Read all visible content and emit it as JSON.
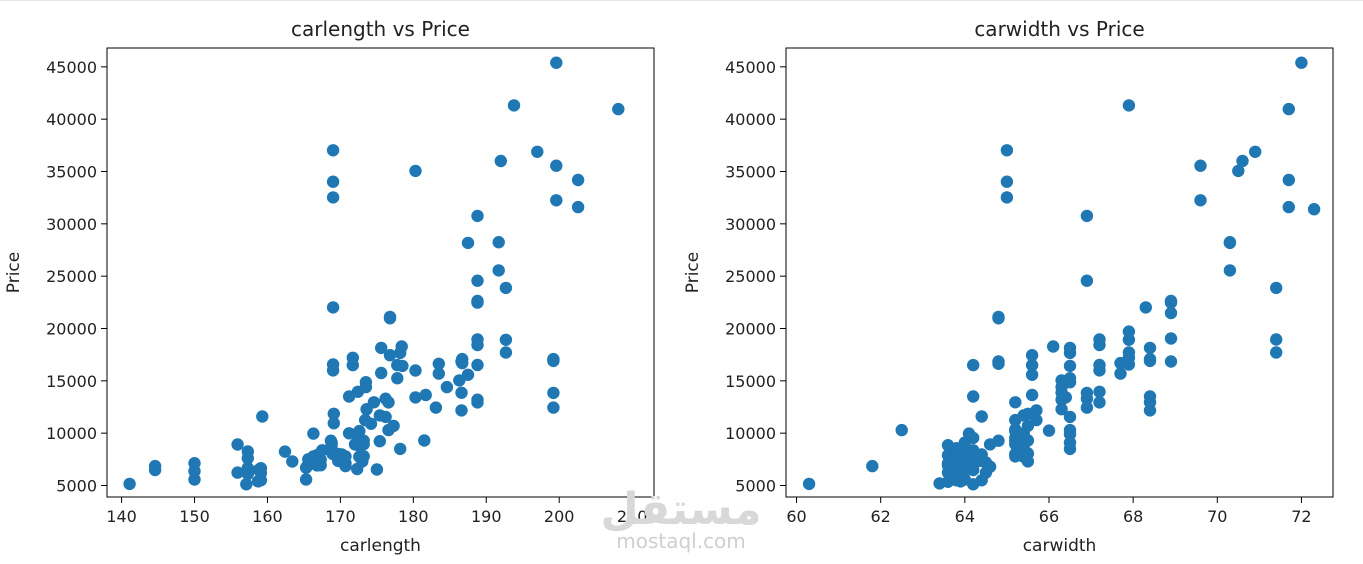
{
  "watermark": {
    "logo_text": "مستقل",
    "url": "mostaql.com"
  },
  "chart_data": [
    {
      "type": "scatter",
      "title": "carlength vs Price",
      "xlabel": "carlength",
      "ylabel": "Price",
      "xlim": [
        138,
        213
      ],
      "ylim": [
        3900,
        46800
      ],
      "xticks": [
        140,
        150,
        160,
        170,
        180,
        190,
        200,
        210
      ],
      "yticks": [
        5000,
        10000,
        15000,
        20000,
        25000,
        30000,
        35000,
        40000,
        45000
      ],
      "color": "#1f77b4",
      "points": [
        [
          141.1,
          5151
        ],
        [
          144.6,
          6479
        ],
        [
          144.6,
          6855
        ],
        [
          150.0,
          5572
        ],
        [
          150.0,
          6377
        ],
        [
          150.0,
          7129
        ],
        [
          155.9,
          6229
        ],
        [
          155.9,
          8916
        ],
        [
          157.1,
          5118
        ],
        [
          157.3,
          6095
        ],
        [
          157.3,
          6669
        ],
        [
          157.3,
          7609
        ],
        [
          157.3,
          8249
        ],
        [
          158.7,
          5389
        ],
        [
          158.8,
          6488
        ],
        [
          159.1,
          5499
        ],
        [
          159.1,
          6189
        ],
        [
          159.1,
          6649
        ],
        [
          159.3,
          11595
        ],
        [
          162.4,
          8238
        ],
        [
          163.4,
          7295
        ],
        [
          165.3,
          5572
        ],
        [
          165.3,
          6692
        ],
        [
          165.6,
          7499
        ],
        [
          166.3,
          7775
        ],
        [
          166.3,
          9960
        ],
        [
          166.8,
          6918
        ],
        [
          166.8,
          7198
        ],
        [
          166.8,
          7898
        ],
        [
          167.3,
          6938
        ],
        [
          167.3,
          7463
        ],
        [
          167.5,
          8358
        ],
        [
          168.8,
          9095
        ],
        [
          168.8,
          8845
        ],
        [
          168.9,
          8058
        ],
        [
          169.0,
          7995
        ],
        [
          169.0,
          32528
        ],
        [
          169.0,
          34028
        ],
        [
          169.0,
          37028
        ],
        [
          169.1,
          10945
        ],
        [
          169.1,
          11845
        ],
        [
          169.0,
          16558
        ],
        [
          169.0,
          15998
        ],
        [
          169.0,
          22018
        ],
        [
          169.7,
          8013
        ],
        [
          169.7,
          7349
        ],
        [
          170.2,
          7957
        ],
        [
          170.7,
          6849
        ],
        [
          170.7,
          7126
        ],
        [
          170.7,
          7775
        ],
        [
          171.2,
          9989
        ],
        [
          171.2,
          13499
        ],
        [
          171.7,
          17199
        ],
        [
          171.7,
          16500
        ],
        [
          172.0,
          8921
        ],
        [
          172.4,
          9279
        ],
        [
          172.6,
          7738
        ],
        [
          172.6,
          8778
        ],
        [
          172.6,
          9549
        ],
        [
          172.6,
          10198
        ],
        [
          173.0,
          7299
        ],
        [
          173.2,
          7788
        ],
        [
          173.2,
          8948
        ],
        [
          173.2,
          9279
        ],
        [
          173.4,
          11248
        ],
        [
          173.5,
          14399
        ],
        [
          173.5,
          14869
        ],
        [
          173.6,
          12290
        ],
        [
          174.6,
          12945
        ],
        [
          175.4,
          9233
        ],
        [
          175.4,
          11694
        ],
        [
          175.6,
          18150
        ],
        [
          175.6,
          15750
        ],
        [
          176.2,
          11549
        ],
        [
          176.2,
          13295
        ],
        [
          176.6,
          10295
        ],
        [
          176.6,
          12940
        ],
        [
          176.8,
          17450
        ],
        [
          176.8,
          21105
        ],
        [
          176.8,
          20970
        ],
        [
          177.3,
          10698
        ],
        [
          177.8,
          16503
        ],
        [
          177.8,
          15250
        ],
        [
          178.2,
          17669
        ],
        [
          178.2,
          8495
        ],
        [
          178.4,
          18280
        ],
        [
          178.5,
          16430
        ],
        [
          180.3,
          13415
        ],
        [
          180.3,
          15985
        ],
        [
          180.3,
          35056
        ],
        [
          181.5,
          9295
        ],
        [
          181.7,
          13645
        ],
        [
          183.1,
          12440
        ],
        [
          183.5,
          16630
        ],
        [
          183.5,
          15690
        ],
        [
          184.6,
          14399
        ],
        [
          186.6,
          12170
        ],
        [
          186.6,
          13860
        ],
        [
          186.6,
          16845
        ],
        [
          186.7,
          17075
        ],
        [
          186.7,
          16695
        ],
        [
          187.5,
          28176
        ],
        [
          187.5,
          15580
        ],
        [
          188.8,
          16515
        ],
        [
          188.8,
          18420
        ],
        [
          188.8,
          18950
        ],
        [
          188.8,
          22470
        ],
        [
          188.8,
          22625
        ],
        [
          188.8,
          24565
        ],
        [
          188.8,
          30760
        ],
        [
          188.8,
          13200
        ],
        [
          188.8,
          12940
        ],
        [
          191.7,
          25552
        ],
        [
          191.7,
          28248
        ],
        [
          192.0,
          36000
        ],
        [
          192.7,
          17710
        ],
        [
          192.7,
          18920
        ],
        [
          192.7,
          23875
        ],
        [
          197.0,
          36880
        ],
        [
          199.2,
          12440
        ],
        [
          199.2,
          13845
        ],
        [
          199.2,
          16900
        ],
        [
          199.2,
          17075
        ],
        [
          199.6,
          45400
        ],
        [
          199.6,
          32250
        ],
        [
          199.6,
          35550
        ],
        [
          202.6,
          31600
        ],
        [
          202.6,
          34184
        ],
        [
          208.1,
          40960
        ],
        [
          193.8,
          41315
        ],
        [
          186.3,
          15040
        ],
        [
          168.7,
          9279
        ],
        [
          165.4,
          6795
        ],
        [
          172.3,
          6575
        ],
        [
          175.0,
          6529
        ],
        [
          174.2,
          10898
        ],
        [
          172.4,
          13950
        ]
      ]
    },
    {
      "type": "scatter",
      "title": "carwidth vs Price",
      "xlabel": "carwidth",
      "ylabel": "Price",
      "xlim": [
        59.75,
        72.75
      ],
      "ylim": [
        3900,
        46800
      ],
      "xticks": [
        60,
        62,
        64,
        66,
        68,
        70,
        72
      ],
      "yticks": [
        5000,
        10000,
        15000,
        20000,
        25000,
        30000,
        35000,
        40000,
        45000
      ],
      "color": "#1f77b4",
      "points": [
        [
          60.3,
          5151
        ],
        [
          61.8,
          6855
        ],
        [
          62.5,
          10295
        ],
        [
          63.4,
          5195
        ],
        [
          63.6,
          5348
        ],
        [
          63.6,
          6229
        ],
        [
          63.6,
          6918
        ],
        [
          63.6,
          7129
        ],
        [
          63.6,
          7895
        ],
        [
          63.6,
          8845
        ],
        [
          63.8,
          5499
        ],
        [
          63.8,
          6095
        ],
        [
          63.8,
          6488
        ],
        [
          63.8,
          7099
        ],
        [
          63.8,
          7609
        ],
        [
          63.8,
          8249
        ],
        [
          63.8,
          8558
        ],
        [
          63.9,
          5389
        ],
        [
          63.9,
          6189
        ],
        [
          63.9,
          6649
        ],
        [
          63.9,
          7299
        ],
        [
          64.0,
          5572
        ],
        [
          64.0,
          6377
        ],
        [
          64.0,
          6692
        ],
        [
          64.0,
          7463
        ],
        [
          64.0,
          7799
        ],
        [
          64.0,
          8499
        ],
        [
          64.0,
          9095
        ],
        [
          64.1,
          9960
        ],
        [
          64.2,
          5118
        ],
        [
          64.2,
          6479
        ],
        [
          64.2,
          6849
        ],
        [
          64.2,
          7126
        ],
        [
          64.2,
          7775
        ],
        [
          64.2,
          8358
        ],
        [
          64.2,
          9549
        ],
        [
          64.2,
          16500
        ],
        [
          64.2,
          13499
        ],
        [
          64.4,
          11595
        ],
        [
          64.4,
          7349
        ],
        [
          64.4,
          7957
        ],
        [
          64.4,
          5499
        ],
        [
          64.5,
          6229
        ],
        [
          64.5,
          7198
        ],
        [
          64.6,
          6795
        ],
        [
          64.6,
          8921
        ],
        [
          64.8,
          9279
        ],
        [
          64.8,
          20970
        ],
        [
          64.8,
          21105
        ],
        [
          64.8,
          16630
        ],
        [
          64.8,
          16845
        ],
        [
          65.0,
          32528
        ],
        [
          65.0,
          34028
        ],
        [
          65.0,
          37028
        ],
        [
          65.2,
          7775
        ],
        [
          65.2,
          8948
        ],
        [
          65.2,
          9279
        ],
        [
          65.2,
          9549
        ],
        [
          65.2,
          10198
        ],
        [
          65.2,
          10345
        ],
        [
          65.2,
          11245
        ],
        [
          65.2,
          12945
        ],
        [
          65.2,
          8013
        ],
        [
          65.4,
          7738
        ],
        [
          65.4,
          8778
        ],
        [
          65.4,
          9233
        ],
        [
          65.4,
          9989
        ],
        [
          65.4,
          11694
        ],
        [
          65.5,
          7299
        ],
        [
          65.5,
          8058
        ],
        [
          65.5,
          9295
        ],
        [
          65.5,
          10698
        ],
        [
          65.5,
          11850
        ],
        [
          65.6,
          16503
        ],
        [
          65.6,
          17450
        ],
        [
          65.6,
          15580
        ],
        [
          65.6,
          13645
        ],
        [
          65.7,
          11248
        ],
        [
          65.7,
          12170
        ],
        [
          66.0,
          10245
        ],
        [
          66.1,
          18280
        ],
        [
          66.3,
          13200
        ],
        [
          66.3,
          13860
        ],
        [
          66.3,
          14399
        ],
        [
          66.3,
          15040
        ],
        [
          66.3,
          12290
        ],
        [
          66.4,
          13415
        ],
        [
          66.5,
          8495
        ],
        [
          66.5,
          9095
        ],
        [
          66.5,
          9895
        ],
        [
          66.5,
          10295
        ],
        [
          66.5,
          11549
        ],
        [
          66.5,
          14869
        ],
        [
          66.5,
          15250
        ],
        [
          66.5,
          16430
        ],
        [
          66.5,
          17669
        ],
        [
          66.5,
          18150
        ],
        [
          66.9,
          24565
        ],
        [
          66.9,
          30760
        ],
        [
          66.9,
          12440
        ],
        [
          66.9,
          13295
        ],
        [
          66.9,
          13845
        ],
        [
          67.2,
          16515
        ],
        [
          67.2,
          18420
        ],
        [
          67.2,
          18950
        ],
        [
          67.2,
          13950
        ],
        [
          67.2,
          15998
        ],
        [
          67.2,
          12940
        ],
        [
          67.7,
          15690
        ],
        [
          67.7,
          16695
        ],
        [
          67.9,
          16558
        ],
        [
          67.9,
          17199
        ],
        [
          67.9,
          17710
        ],
        [
          67.9,
          18920
        ],
        [
          67.9,
          41315
        ],
        [
          67.9,
          19699
        ],
        [
          68.3,
          22018
        ],
        [
          68.4,
          12170
        ],
        [
          68.4,
          12945
        ],
        [
          68.4,
          13499
        ],
        [
          68.4,
          17075
        ],
        [
          68.4,
          16900
        ],
        [
          68.4,
          18150
        ],
        [
          68.9,
          19045
        ],
        [
          68.9,
          22470
        ],
        [
          68.9,
          21485
        ],
        [
          68.9,
          22625
        ],
        [
          68.9,
          16845
        ],
        [
          69.6,
          35550
        ],
        [
          69.6,
          32250
        ],
        [
          70.3,
          28176
        ],
        [
          70.3,
          28248
        ],
        [
          70.3,
          25552
        ],
        [
          70.5,
          35056
        ],
        [
          70.6,
          36000
        ],
        [
          70.9,
          36880
        ],
        [
          71.4,
          23875
        ],
        [
          71.4,
          18950
        ],
        [
          71.4,
          17710
        ],
        [
          71.7,
          31600
        ],
        [
          71.7,
          34184
        ],
        [
          71.7,
          40960
        ],
        [
          72.0,
          45400
        ],
        [
          72.3,
          31400
        ]
      ]
    }
  ]
}
